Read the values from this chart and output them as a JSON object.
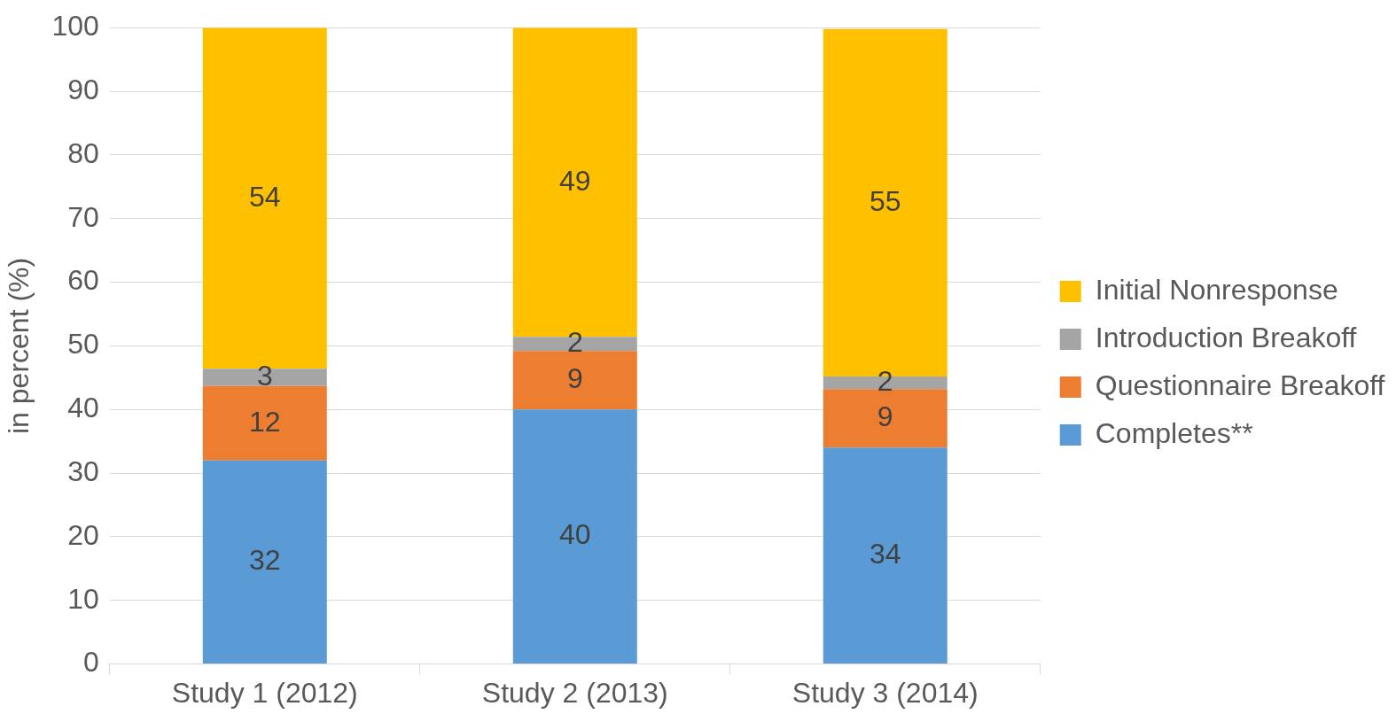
{
  "chart_data": {
    "type": "bar",
    "stacked": true,
    "ylabel": "in percent (%)",
    "categories": [
      "Study 1 (2012)",
      "Study 2 (2013)",
      "Study 3 (2014)"
    ],
    "series": [
      {
        "name": "Completes**",
        "color": "#5b9bd5",
        "values": [
          32,
          40,
          34
        ],
        "value_labels": [
          "32",
          "40",
          "34"
        ]
      },
      {
        "name": "Questionnaire Breakoff",
        "color": "#ed7d31",
        "values": [
          11.7,
          9.2,
          9.2
        ],
        "value_labels": [
          "12",
          "9",
          "9"
        ]
      },
      {
        "name": "Introduction Breakoff",
        "color": "#a5a5a5",
        "values": [
          2.7,
          2.2,
          2
        ],
        "value_labels": [
          "3",
          "2",
          "2"
        ]
      },
      {
        "name": "Initial Nonresponse",
        "color": "#ffc000",
        "values": [
          53.6,
          48.6,
          54.6
        ],
        "value_labels": [
          "54",
          "49",
          "55"
        ]
      }
    ],
    "ylim": [
      0,
      100
    ],
    "yticks": [
      0,
      10,
      20,
      30,
      40,
      50,
      60,
      70,
      80,
      90,
      100
    ],
    "grid": "y",
    "legend": "right"
  }
}
